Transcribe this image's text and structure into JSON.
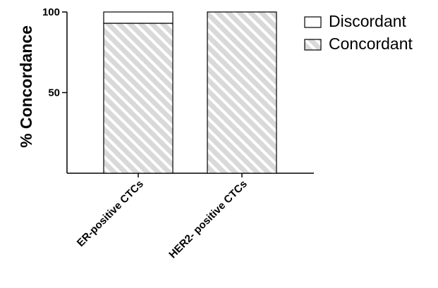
{
  "chart_data": {
    "type": "bar",
    "stacked": true,
    "categories": [
      "ER-positive CTCs",
      "HER2- positive CTCs"
    ],
    "series": [
      {
        "name": "Concordant",
        "values": [
          93,
          100
        ],
        "fill": "#d9d9d9",
        "hatch_color": "#ffffff",
        "pattern": "diagonal-hatch"
      },
      {
        "name": "Discordant",
        "values": [
          7,
          0
        ],
        "fill": "#ffffff",
        "pattern": "none"
      }
    ],
    "ylabel": "% Concordance",
    "xlabel": "",
    "title": "",
    "ylim": [
      0,
      100
    ],
    "yticks": [
      {
        "value": 100,
        "label": "100"
      },
      {
        "value": 50,
        "label": "50"
      }
    ],
    "legend": {
      "position": "top-right",
      "order": [
        "Discordant",
        "Concordant"
      ]
    },
    "grid": false,
    "colors": {
      "axis": "#000000",
      "bar_outline": "#000000"
    }
  }
}
